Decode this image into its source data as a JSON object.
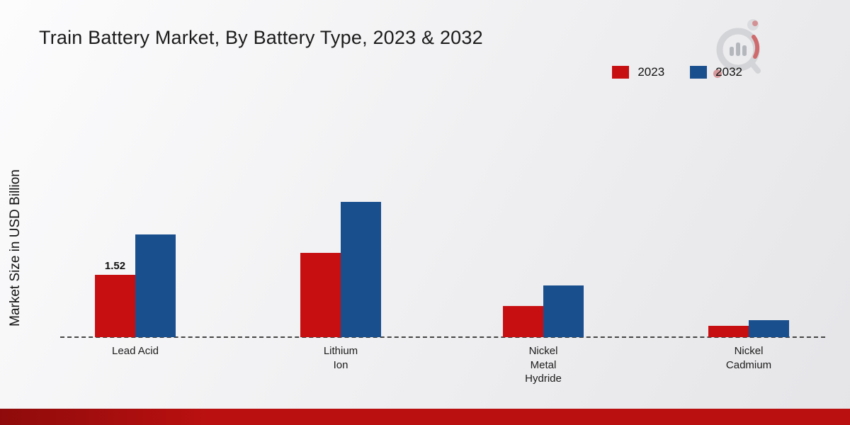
{
  "title": "Train Battery Market, By Battery Type, 2023 & 2032",
  "y_axis_label": "Market Size in USD Billion",
  "colors": {
    "series_2023": "#c70f12",
    "series_2032": "#1a4f8e",
    "footer_bar": "#bb1010",
    "baseline": "#454545"
  },
  "chart_data": {
    "type": "bar",
    "title": "Train Battery Market, By Battery Type, 2023 & 2032",
    "xlabel": "",
    "ylabel": "Market Size in USD Billion",
    "categories": [
      "Lead Acid",
      "Lithium Ion",
      "Nickel Metal Hydride",
      "Nickel Cadmium"
    ],
    "category_labels": [
      "Lead Acid",
      "Lithium\nIon",
      "Nickel\nMetal\nHydride",
      "Nickel\nCadmium"
    ],
    "series": [
      {
        "name": "2023",
        "color": "#c70f12",
        "values": [
          1.52,
          2.05,
          0.75,
          0.27
        ],
        "bar_labels": [
          "1.52",
          "",
          "",
          ""
        ]
      },
      {
        "name": "2032",
        "color": "#1a4f8e",
        "values": [
          2.5,
          3.3,
          1.25,
          0.41
        ],
        "bar_labels": [
          "",
          "",
          "",
          ""
        ]
      }
    ],
    "ylim": [
      0,
      4
    ],
    "grid": false,
    "axis_ticks_visible": false,
    "baseline_style": "dashed",
    "legend_position": "top-right"
  }
}
